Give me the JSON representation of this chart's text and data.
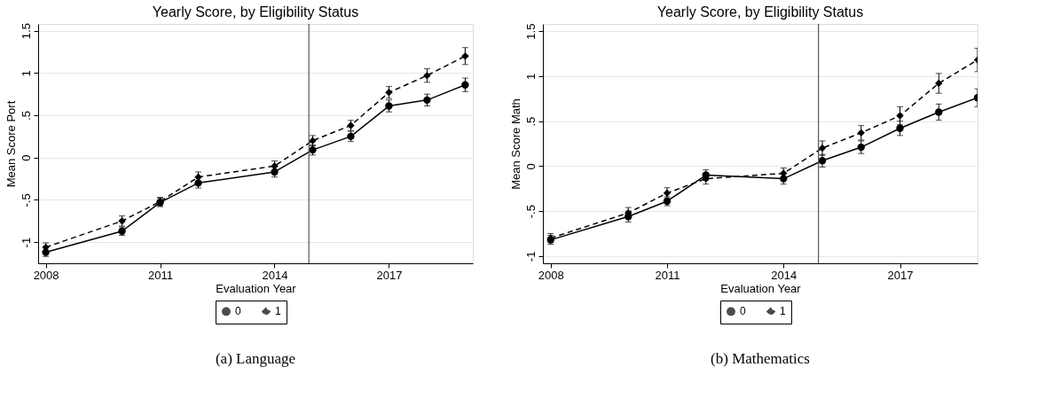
{
  "chart_data": [
    {
      "type": "line",
      "title": "Yearly Score, by Eligibility Status",
      "xlabel": "Evaluation Year",
      "ylabel": "Mean Score Port",
      "x": [
        2008,
        2010,
        2011,
        2012,
        2014,
        2015,
        2016,
        2017,
        2018,
        2019
      ],
      "series": [
        {
          "name": "0",
          "color": "#000000",
          "marker": "circle",
          "line_style": "solid",
          "values": [
            -1.12,
            -0.87,
            -0.53,
            -0.3,
            -0.17,
            0.09,
            0.25,
            0.61,
            0.68,
            0.86
          ],
          "errors": [
            0.05,
            0.05,
            0.05,
            0.06,
            0.06,
            0.06,
            0.06,
            0.07,
            0.07,
            0.08
          ]
        },
        {
          "name": "1",
          "color": "#000000",
          "marker": "diamond",
          "line_style": "dashed",
          "values": [
            -1.06,
            -0.75,
            -0.52,
            -0.23,
            -0.1,
            0.2,
            0.38,
            0.77,
            0.97,
            1.2
          ],
          "errors": [
            0.05,
            0.06,
            0.05,
            0.06,
            0.06,
            0.06,
            0.06,
            0.07,
            0.08,
            0.1
          ]
        }
      ],
      "xlim": [
        2007.8,
        2019.2
      ],
      "xticks": [
        2008,
        2011,
        2014,
        2017
      ],
      "ylim": [
        -1.25,
        1.58
      ],
      "yticks": [
        {
          "value": -1,
          "label": "-1"
        },
        {
          "value": -0.5,
          "label": "-.5"
        },
        0,
        {
          "value": 0.5,
          "label": ".5"
        },
        1,
        1.5
      ],
      "ref_lines": [
        {
          "axis": "x",
          "value": 2014.9,
          "color": "#555555"
        }
      ],
      "grid": "y",
      "legend": "bottom",
      "annotations": [
        "(a) Language"
      ]
    },
    {
      "type": "line",
      "title": "Yearly Score, by Eligibility Status",
      "xlabel": "Evaluation Year",
      "ylabel": "Mean Score Math",
      "x": [
        2008,
        2010,
        2011,
        2012,
        2014,
        2015,
        2016,
        2017,
        2018,
        2019
      ],
      "series": [
        {
          "name": "0",
          "color": "#000000",
          "marker": "circle",
          "line_style": "solid",
          "values": [
            -0.82,
            -0.56,
            -0.39,
            -0.1,
            -0.14,
            0.06,
            0.21,
            0.42,
            0.6,
            0.76
          ],
          "errors": [
            0.05,
            0.06,
            0.05,
            0.06,
            0.06,
            0.07,
            0.07,
            0.08,
            0.09,
            0.1
          ]
        },
        {
          "name": "1",
          "color": "#000000",
          "marker": "diamond",
          "line_style": "dashed",
          "values": [
            -0.8,
            -0.52,
            -0.3,
            -0.14,
            -0.08,
            0.2,
            0.37,
            0.56,
            0.92,
            1.18
          ],
          "errors": [
            0.05,
            0.06,
            0.06,
            0.06,
            0.06,
            0.08,
            0.08,
            0.1,
            0.11,
            0.13
          ]
        }
      ],
      "xlim": [
        2007.8,
        2019.0
      ],
      "xticks": [
        2008,
        2011,
        2014,
        2017
      ],
      "ylim": [
        -1.08,
        1.58
      ],
      "yticks": [
        {
          "value": -1,
          "label": "-1"
        },
        {
          "value": -0.5,
          "label": "-.5"
        },
        0,
        {
          "value": 0.5,
          "label": ".5"
        },
        1,
        1.5
      ],
      "ref_lines": [
        {
          "axis": "x",
          "value": 2014.9,
          "color": "#555555"
        }
      ],
      "grid": "y",
      "legend": "bottom",
      "annotations": [
        "(b) Mathematics"
      ]
    }
  ]
}
